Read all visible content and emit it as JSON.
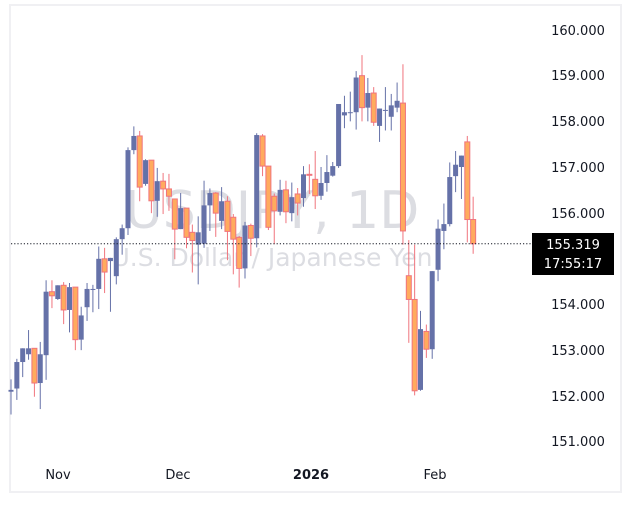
{
  "chart_data": {
    "type": "candlestick",
    "title": "USDJPY, 1D",
    "subtitle": "U.S. Dollar / Japanese Yen",
    "symbol": "USDJPY",
    "interval": "1D",
    "xlabel": "",
    "ylabel": "",
    "ylim": [
      150.5,
      160.6
    ],
    "y_ticks": [
      "160.000",
      "159.000",
      "158.000",
      "157.000",
      "156.000",
      "154.000",
      "153.000",
      "152.000",
      "151.000"
    ],
    "x_ticks": [
      {
        "label": "Nov",
        "bold": false
      },
      {
        "label": "Dec",
        "bold": false
      },
      {
        "label": "2026",
        "bold": true
      },
      {
        "label": "Feb",
        "bold": false
      }
    ],
    "last_price": "155.319",
    "countdown": "17:55:17",
    "grid": false,
    "colors": {
      "up_body": "#6571a8",
      "down_body": "#ffab5e",
      "down_border": "#f0747d",
      "down_wick": "#f0747d",
      "up_wick": "#6571a8",
      "price_label_bg": "#000000",
      "watermark": "#dcdde2"
    },
    "candles": [
      {
        "o": 152.08,
        "h": 152.35,
        "l": 151.58,
        "c": 152.12
      },
      {
        "o": 152.15,
        "h": 152.8,
        "l": 151.9,
        "c": 152.73
      },
      {
        "o": 152.73,
        "h": 153.01,
        "l": 152.4,
        "c": 153.03
      },
      {
        "o": 152.9,
        "h": 153.43,
        "l": 152.78,
        "c": 153.03
      },
      {
        "o": 153.03,
        "h": 153.03,
        "l": 151.97,
        "c": 152.27
      },
      {
        "o": 152.27,
        "h": 153.17,
        "l": 151.7,
        "c": 152.9
      },
      {
        "o": 152.88,
        "h": 154.52,
        "l": 152.34,
        "c": 154.27
      },
      {
        "o": 154.27,
        "h": 154.52,
        "l": 153.91,
        "c": 154.18
      },
      {
        "o": 154.11,
        "h": 154.4,
        "l": 154.09,
        "c": 154.41
      },
      {
        "o": 154.41,
        "h": 154.48,
        "l": 153.56,
        "c": 153.87
      },
      {
        "o": 153.87,
        "h": 154.46,
        "l": 153.38,
        "c": 154.37
      },
      {
        "o": 154.37,
        "h": 154.37,
        "l": 152.99,
        "c": 153.22
      },
      {
        "o": 153.22,
        "h": 153.94,
        "l": 152.99,
        "c": 153.75
      },
      {
        "o": 153.93,
        "h": 154.46,
        "l": 153.63,
        "c": 154.33
      },
      {
        "o": 154.31,
        "h": 154.42,
        "l": 153.82,
        "c": 154.33
      },
      {
        "o": 154.33,
        "h": 155.26,
        "l": 153.89,
        "c": 154.99
      },
      {
        "o": 154.99,
        "h": 155.23,
        "l": 154.24,
        "c": 154.7
      },
      {
        "o": 154.94,
        "h": 155.01,
        "l": 153.83,
        "c": 155.01
      },
      {
        "o": 154.61,
        "h": 155.46,
        "l": 154.43,
        "c": 155.42
      },
      {
        "o": 155.42,
        "h": 155.74,
        "l": 155.08,
        "c": 155.66
      },
      {
        "o": 155.66,
        "h": 157.43,
        "l": 155.51,
        "c": 157.37
      },
      {
        "o": 157.37,
        "h": 157.89,
        "l": 157.28,
        "c": 157.68
      },
      {
        "o": 157.68,
        "h": 157.79,
        "l": 156.25,
        "c": 156.56
      },
      {
        "o": 156.63,
        "h": 157.17,
        "l": 156.59,
        "c": 157.15
      },
      {
        "o": 157.15,
        "h": 157.15,
        "l": 155.99,
        "c": 156.26
      },
      {
        "o": 156.26,
        "h": 156.98,
        "l": 155.91,
        "c": 156.69
      },
      {
        "o": 156.69,
        "h": 156.87,
        "l": 155.97,
        "c": 156.52
      },
      {
        "o": 156.52,
        "h": 156.85,
        "l": 156.04,
        "c": 156.36
      },
      {
        "o": 156.3,
        "h": 156.3,
        "l": 154.98,
        "c": 155.64
      },
      {
        "o": 155.64,
        "h": 156.43,
        "l": 155.64,
        "c": 156.1
      },
      {
        "o": 156.1,
        "h": 156.1,
        "l": 155.22,
        "c": 155.46
      },
      {
        "o": 155.57,
        "h": 155.74,
        "l": 154.69,
        "c": 155.39
      },
      {
        "o": 155.3,
        "h": 155.92,
        "l": 154.43,
        "c": 155.57
      },
      {
        "o": 155.32,
        "h": 156.7,
        "l": 155.23,
        "c": 156.16
      },
      {
        "o": 156.16,
        "h": 156.53,
        "l": 155.6,
        "c": 156.43
      },
      {
        "o": 156.43,
        "h": 156.45,
        "l": 155.47,
        "c": 155.99
      },
      {
        "o": 155.82,
        "h": 156.56,
        "l": 155.64,
        "c": 156.25
      },
      {
        "o": 156.25,
        "h": 156.36,
        "l": 154.96,
        "c": 155.59
      },
      {
        "o": 155.9,
        "h": 155.97,
        "l": 154.65,
        "c": 155.42
      },
      {
        "o": 155.46,
        "h": 155.49,
        "l": 154.36,
        "c": 154.78
      },
      {
        "o": 154.78,
        "h": 155.8,
        "l": 154.56,
        "c": 155.72
      },
      {
        "o": 155.72,
        "h": 155.76,
        "l": 155.05,
        "c": 155.44
      },
      {
        "o": 155.44,
        "h": 157.74,
        "l": 155.24,
        "c": 157.7
      },
      {
        "o": 157.68,
        "h": 157.72,
        "l": 156.8,
        "c": 157.02
      },
      {
        "o": 157.02,
        "h": 157.02,
        "l": 155.62,
        "c": 155.68
      },
      {
        "o": 156.36,
        "h": 156.42,
        "l": 155.31,
        "c": 156.04
      },
      {
        "o": 156.02,
        "h": 156.72,
        "l": 155.94,
        "c": 156.5
      },
      {
        "o": 156.5,
        "h": 156.7,
        "l": 155.77,
        "c": 156.02
      },
      {
        "o": 155.99,
        "h": 156.66,
        "l": 155.81,
        "c": 156.34
      },
      {
        "o": 156.41,
        "h": 156.54,
        "l": 155.94,
        "c": 156.21
      },
      {
        "o": 156.32,
        "h": 157.02,
        "l": 156.13,
        "c": 156.84
      },
      {
        "o": 156.84,
        "h": 157.06,
        "l": 156.41,
        "c": 156.82
      },
      {
        "o": 156.73,
        "h": 157.35,
        "l": 156.08,
        "c": 156.37
      },
      {
        "o": 156.37,
        "h": 157.0,
        "l": 156.28,
        "c": 156.65
      },
      {
        "o": 156.65,
        "h": 157.26,
        "l": 156.46,
        "c": 156.89
      },
      {
        "o": 156.81,
        "h": 157.11,
        "l": 156.79,
        "c": 157.02
      },
      {
        "o": 157.02,
        "h": 158.21,
        "l": 156.98,
        "c": 158.38
      },
      {
        "o": 158.13,
        "h": 158.56,
        "l": 157.85,
        "c": 158.2
      },
      {
        "o": 158.2,
        "h": 158.65,
        "l": 158.0,
        "c": 158.2
      },
      {
        "o": 158.2,
        "h": 159.1,
        "l": 157.82,
        "c": 158.96
      },
      {
        "o": 159.0,
        "h": 159.45,
        "l": 158.0,
        "c": 158.3
      },
      {
        "o": 158.3,
        "h": 158.95,
        "l": 158.0,
        "c": 158.62
      },
      {
        "o": 158.62,
        "h": 158.75,
        "l": 157.9,
        "c": 157.98
      },
      {
        "o": 157.9,
        "h": 158.2,
        "l": 157.55,
        "c": 158.28
      },
      {
        "o": 158.25,
        "h": 158.75,
        "l": 157.8,
        "c": 158.25
      },
      {
        "o": 158.1,
        "h": 158.6,
        "l": 157.8,
        "c": 158.35
      },
      {
        "o": 158.3,
        "h": 158.85,
        "l": 158.2,
        "c": 158.45
      },
      {
        "o": 158.4,
        "h": 159.25,
        "l": 155.3,
        "c": 155.6
      },
      {
        "o": 154.62,
        "h": 155.4,
        "l": 153.15,
        "c": 154.1
      },
      {
        "o": 154.1,
        "h": 155.3,
        "l": 152.0,
        "c": 152.1
      },
      {
        "o": 152.12,
        "h": 153.85,
        "l": 152.1,
        "c": 153.45
      },
      {
        "o": 153.4,
        "h": 153.55,
        "l": 152.82,
        "c": 153.01
      },
      {
        "o": 153.01,
        "h": 154.68,
        "l": 152.8,
        "c": 154.72
      },
      {
        "o": 154.75,
        "h": 155.85,
        "l": 154.5,
        "c": 155.65
      },
      {
        "o": 155.6,
        "h": 156.2,
        "l": 155.2,
        "c": 155.75
      },
      {
        "o": 155.75,
        "h": 157.1,
        "l": 155.7,
        "c": 156.78
      },
      {
        "o": 156.8,
        "h": 157.35,
        "l": 156.45,
        "c": 157.05
      },
      {
        "o": 157.0,
        "h": 157.25,
        "l": 156.3,
        "c": 157.25
      },
      {
        "o": 157.55,
        "h": 157.68,
        "l": 155.35,
        "c": 155.85
      },
      {
        "o": 155.85,
        "h": 156.35,
        "l": 155.1,
        "c": 155.32
      }
    ]
  }
}
